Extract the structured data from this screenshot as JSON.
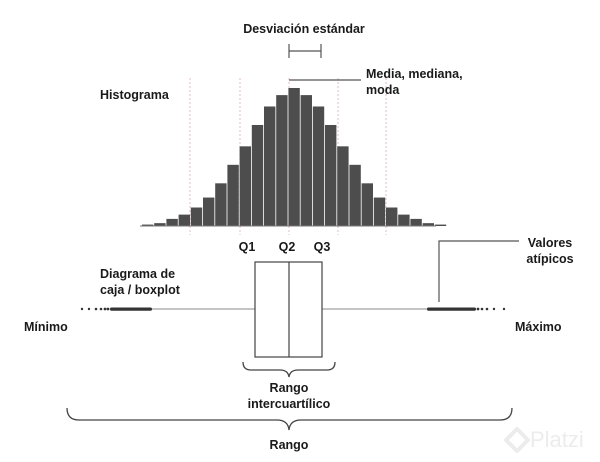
{
  "labels": {
    "std_dev": "Desviación estándar",
    "mean_line1": "Media, mediana,",
    "mean_line2": "moda",
    "histogram": "Histograma",
    "q1": "Q1",
    "q2": "Q2",
    "q3": "Q3",
    "outliers_line1": "Valores",
    "outliers_line2": "atípicos",
    "boxplot_line1": "Diagrama de",
    "boxplot_line2": "caja / boxplot",
    "min": "Mínimo",
    "max": "Máximo",
    "iqr_line1": "Rango",
    "iqr_line2": "intercuartílico",
    "range": "Rango"
  },
  "watermark": "Platzi",
  "histogram": {
    "bin_heights": [
      1,
      2,
      5,
      8,
      13,
      20,
      30,
      43,
      56,
      71,
      84,
      92,
      97,
      92,
      84,
      71,
      56,
      43,
      30,
      20,
      13,
      8,
      5,
      2,
      1
    ]
  },
  "colors": {
    "bar": "#4d4d4d",
    "line": "#555555",
    "guide": "#e3bcbc",
    "text": "#1a1a1a"
  }
}
